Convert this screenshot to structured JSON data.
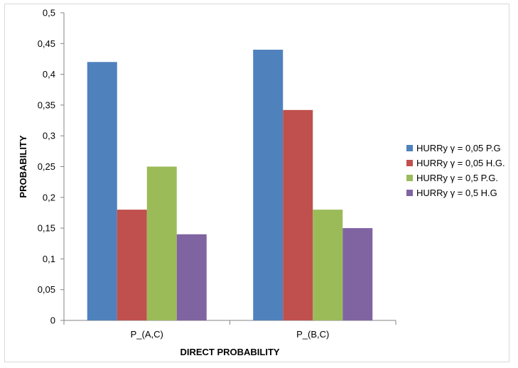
{
  "chart_data": {
    "type": "bar",
    "categories": [
      "P_(A,C)",
      "P_(B,C)"
    ],
    "series": [
      {
        "name": "HURRy γ = 0,05 P.G",
        "values": [
          0.42,
          0.44
        ],
        "color": "#4f81bd"
      },
      {
        "name": "HURRy γ = 0,05 H.G.",
        "values": [
          0.18,
          0.342
        ],
        "color": "#c0504d"
      },
      {
        "name": "HURRy γ = 0,5 P.G.",
        "values": [
          0.25,
          0.18
        ],
        "color": "#9bbb59"
      },
      {
        "name": "HURRy γ = 0,5 H.G",
        "values": [
          0.14,
          0.15
        ],
        "color": "#8064a2"
      }
    ],
    "ylim": [
      0,
      0.5
    ],
    "yticks": [
      "0",
      "0,05",
      "0,1",
      "0,15",
      "0,2",
      "0,25",
      "0,3",
      "0,35",
      "0,4",
      "0,45",
      "0,5"
    ],
    "xlabel": "DIRECT PROBABILITY",
    "ylabel": "PROBABILITY",
    "legend_position": "right",
    "grid": false
  }
}
